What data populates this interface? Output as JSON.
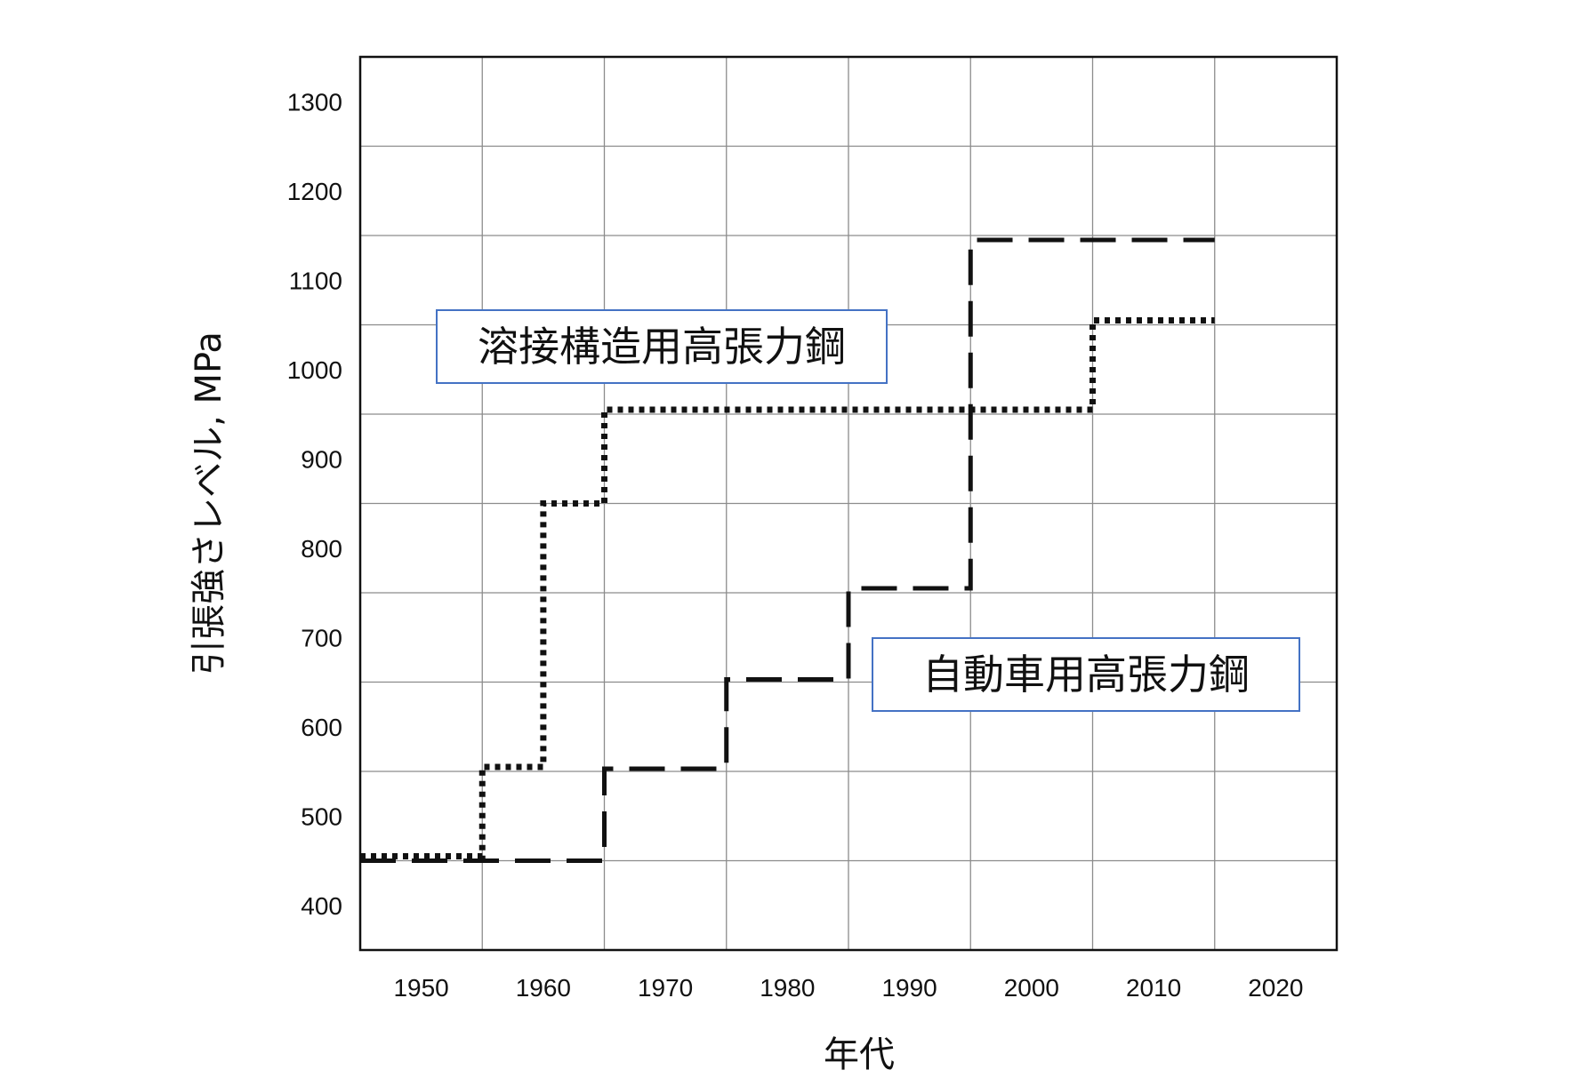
{
  "chart_data": {
    "type": "line",
    "title": "",
    "xlabel": "年代",
    "ylabel": "引張強さレベル, MPa",
    "xlim": [
      1945,
      2025
    ],
    "ylim": [
      350,
      1350
    ],
    "xticks": [
      1950,
      1960,
      1970,
      1980,
      1990,
      2000,
      2010,
      2020
    ],
    "yticks": [
      400,
      500,
      600,
      700,
      800,
      900,
      1000,
      1100,
      1200,
      1300
    ],
    "grid": true,
    "legend": "none",
    "series": [
      {
        "name": "溶接構造用高張力鋼",
        "style": "dotted",
        "color": "#111111",
        "step_points": [
          [
            1945,
            455
          ],
          [
            1955,
            455
          ],
          [
            1955,
            555
          ],
          [
            1960,
            555
          ],
          [
            1960,
            850
          ],
          [
            1965,
            850
          ],
          [
            1965,
            955
          ],
          [
            2005,
            955
          ],
          [
            2005,
            1055
          ],
          [
            2015,
            1055
          ]
        ]
      },
      {
        "name": "自動車用高張力鋼",
        "style": "dashed",
        "color": "#111111",
        "step_points": [
          [
            1945,
            450
          ],
          [
            1965,
            450
          ],
          [
            1965,
            553
          ],
          [
            1975,
            553
          ],
          [
            1975,
            653
          ],
          [
            1985,
            653
          ],
          [
            1985,
            755
          ],
          [
            1995,
            755
          ],
          [
            1995,
            1145
          ],
          [
            2015,
            1145
          ]
        ]
      }
    ],
    "annotations": [
      {
        "text": "溶接構造用高張力鋼",
        "x": 1951,
        "y": 995,
        "border_color": "#4472c4"
      },
      {
        "text": "自動車用高張力鋼",
        "x": 1986,
        "y": 632,
        "border_color": "#4472c4"
      }
    ]
  }
}
